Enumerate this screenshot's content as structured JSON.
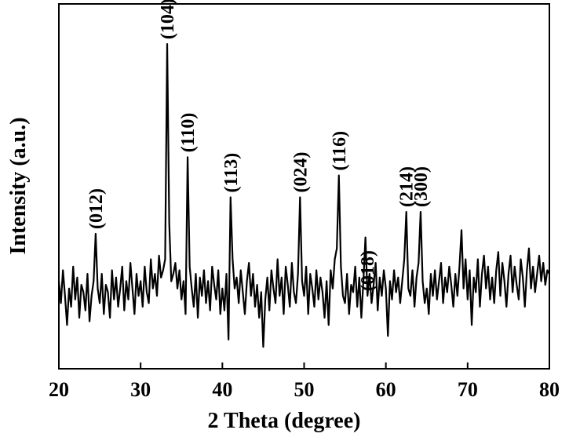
{
  "chart_data": {
    "type": "line",
    "xlabel": "2 Theta (degree)",
    "ylabel": "Intensity (a.u.)",
    "xlim": [
      20,
      80
    ],
    "xticks": [
      20,
      30,
      40,
      50,
      60,
      70,
      80
    ],
    "ylim": [
      0,
      100
    ],
    "x": [
      20,
      20.25,
      20.5,
      20.75,
      21,
      21.25,
      21.5,
      21.75,
      22,
      22.25,
      22.5,
      22.75,
      23,
      23.25,
      23.5,
      23.75,
      24,
      24.25,
      24.5,
      24.75,
      25,
      25.25,
      25.5,
      25.75,
      26,
      26.25,
      26.5,
      26.75,
      27,
      27.25,
      27.5,
      27.75,
      28,
      28.25,
      28.5,
      28.75,
      29,
      29.25,
      29.5,
      29.75,
      30,
      30.25,
      30.5,
      30.75,
      31,
      31.25,
      31.5,
      31.75,
      32,
      32.25,
      32.5,
      32.75,
      33,
      33.25,
      33.5,
      33.75,
      34,
      34.25,
      34.5,
      34.75,
      35,
      35.25,
      35.5,
      35.75,
      36,
      36.25,
      36.5,
      36.75,
      37,
      37.25,
      37.5,
      37.75,
      38,
      38.25,
      38.5,
      38.75,
      39,
      39.25,
      39.5,
      39.75,
      40,
      40.25,
      40.5,
      40.75,
      41,
      41.25,
      41.5,
      41.75,
      42,
      42.25,
      42.5,
      42.75,
      43,
      43.25,
      43.5,
      43.75,
      44,
      44.25,
      44.5,
      44.75,
      45,
      45.25,
      45.5,
      45.75,
      46,
      46.25,
      46.5,
      46.75,
      47,
      47.25,
      47.5,
      47.75,
      48,
      48.25,
      48.5,
      48.75,
      49,
      49.25,
      49.5,
      49.75,
      50,
      50.25,
      50.5,
      50.75,
      51,
      51.25,
      51.5,
      51.75,
      52,
      52.25,
      52.5,
      52.75,
      53,
      53.25,
      53.5,
      53.75,
      54,
      54.25,
      54.5,
      54.75,
      55,
      55.25,
      55.5,
      55.75,
      56,
      56.25,
      56.5,
      56.75,
      57,
      57.25,
      57.5,
      57.75,
      58,
      58.25,
      58.5,
      58.75,
      59,
      59.25,
      59.5,
      59.75,
      60,
      60.25,
      60.5,
      60.75,
      61,
      61.25,
      61.5,
      61.75,
      62,
      62.25,
      62.5,
      62.75,
      63,
      63.25,
      63.5,
      63.75,
      64,
      64.25,
      64.5,
      64.75,
      65,
      65.25,
      65.5,
      65.75,
      66,
      66.25,
      66.5,
      66.75,
      67,
      67.25,
      67.5,
      67.75,
      68,
      68.25,
      68.5,
      68.75,
      69,
      69.25,
      69.5,
      69.75,
      70,
      70.25,
      70.5,
      70.75,
      71,
      71.25,
      71.5,
      71.75,
      72,
      72.25,
      72.5,
      72.75,
      73,
      73.25,
      73.5,
      73.75,
      74,
      74.25,
      74.5,
      74.75,
      75,
      75.25,
      75.5,
      75.75,
      76,
      76.25,
      76.5,
      76.75,
      77,
      77.25,
      77.5,
      77.75,
      78,
      78.25,
      78.5,
      78.75,
      79,
      79.25,
      79.5,
      79.75,
      80
    ],
    "series": [
      {
        "color": "#000000",
        "values": [
          24,
          18,
          27,
          20,
          12,
          22,
          17,
          28,
          19,
          25,
          14,
          23,
          21,
          16,
          26,
          13,
          20,
          24,
          37,
          22,
          18,
          26,
          15,
          23,
          21,
          14,
          27,
          19,
          25,
          17,
          22,
          28,
          16,
          24,
          19,
          29,
          22,
          15,
          26,
          20,
          24,
          17,
          28,
          21,
          18,
          30,
          22,
          26,
          20,
          31,
          25,
          27,
          30,
          89,
          40,
          24,
          26,
          29,
          22,
          27,
          19,
          24,
          15,
          58,
          28,
          22,
          17,
          26,
          14,
          25,
          20,
          27,
          18,
          24,
          16,
          28,
          23,
          19,
          27,
          15,
          22,
          16,
          26,
          8,
          47,
          30,
          22,
          25,
          18,
          27,
          21,
          15,
          24,
          29,
          20,
          26,
          17,
          23,
          14,
          21,
          6,
          19,
          25,
          16,
          27,
          22,
          18,
          30,
          20,
          25,
          15,
          28,
          23,
          17,
          29,
          21,
          18,
          26,
          47,
          24,
          20,
          28,
          15,
          26,
          22,
          17,
          27,
          19,
          25,
          21,
          14,
          24,
          12,
          27,
          22,
          30,
          33,
          53,
          28,
          20,
          18,
          26,
          15,
          23,
          21,
          28,
          17,
          25,
          14,
          24,
          36,
          20,
          26,
          18,
          23,
          29,
          16,
          25,
          20,
          27,
          22,
          9,
          24,
          19,
          27,
          21,
          25,
          18,
          24,
          30,
          43,
          22,
          20,
          27,
          17,
          25,
          29,
          43,
          24,
          18,
          22,
          15,
          26,
          20,
          27,
          19,
          24,
          29,
          18,
          25,
          21,
          28,
          23,
          17,
          26,
          20,
          28,
          38,
          22,
          30,
          19,
          27,
          12,
          25,
          21,
          30,
          17,
          26,
          31,
          22,
          28,
          19,
          25,
          18,
          27,
          32,
          20,
          29,
          24,
          17,
          26,
          31,
          21,
          28,
          23,
          19,
          30,
          25,
          17,
          27,
          33,
          22,
          28,
          21,
          26,
          31,
          24,
          29,
          23,
          27,
          26
        ]
      }
    ],
    "annotations": [
      {
        "text": "(012)",
        "x": 24.5
      },
      {
        "text": "(104)",
        "x": 33.25
      },
      {
        "text": "(110)",
        "x": 35.75
      },
      {
        "text": "(113)",
        "x": 41
      },
      {
        "text": "(024)",
        "x": 49.5
      },
      {
        "text": "(116)",
        "x": 54.25
      },
      {
        "text": "(018)",
        "x": 57.75
      },
      {
        "text": "(214)",
        "x": 62.5
      },
      {
        "text": "(300)",
        "x": 64.25
      }
    ]
  }
}
